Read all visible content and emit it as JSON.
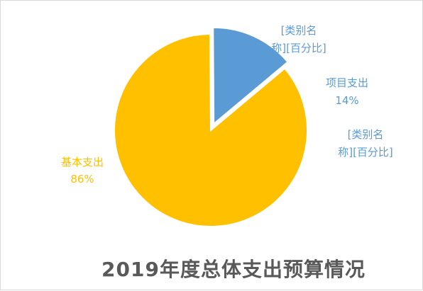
{
  "chart_data": {
    "type": "pie",
    "title": "2019年度总体支出预算情况",
    "slices": [
      {
        "name": "基本支出",
        "value": 86,
        "label_pct": "86%",
        "color": "#FFC000"
      },
      {
        "name": "项目支出",
        "value": 14,
        "label_pct": "14%",
        "color": "#5B9BD5"
      }
    ],
    "placeholder_labels": [
      {
        "line1": "[类别名",
        "line2": "称][百分比]",
        "color": "#5B9BD5"
      },
      {
        "line1": "[类别名",
        "line2": "称][百分比]",
        "color": "#5B9BD5"
      }
    ],
    "legend": "none"
  }
}
